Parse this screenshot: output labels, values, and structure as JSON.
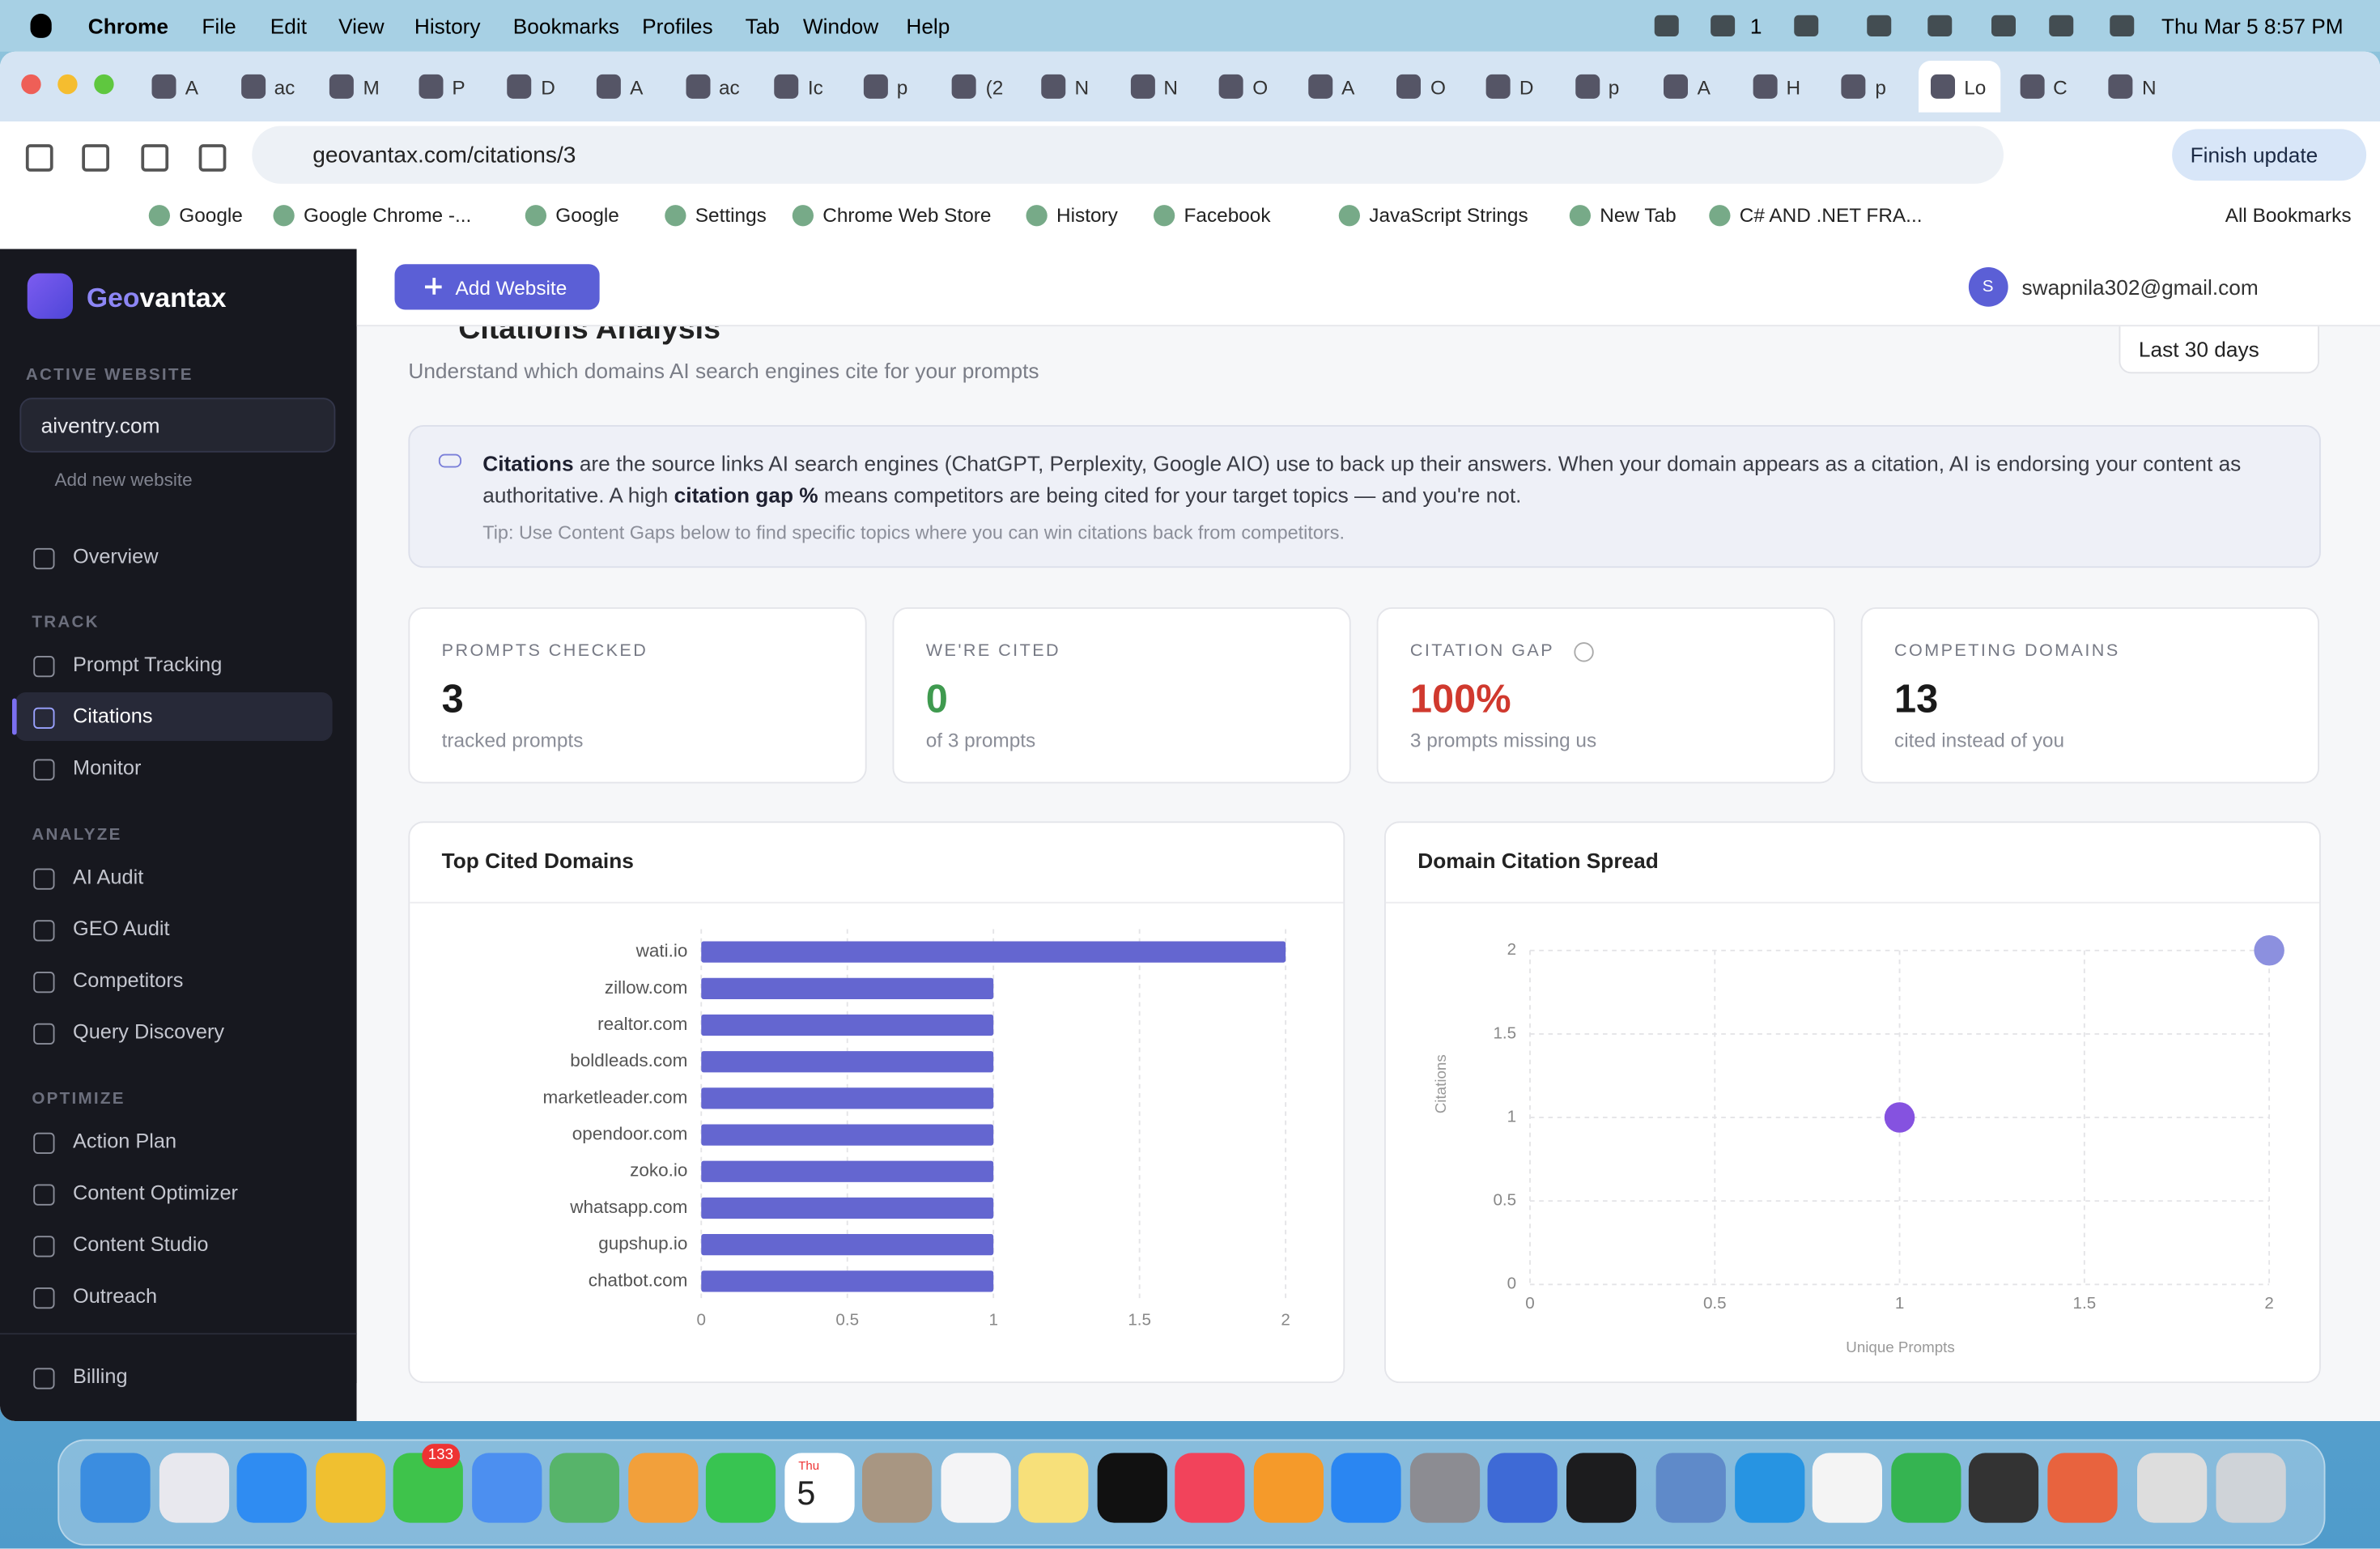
{
  "menubar": {
    "app": "Chrome",
    "menus": [
      "File",
      "Edit",
      "View",
      "History",
      "Bookmarks",
      "Profiles",
      "Tab",
      "Window",
      "Help"
    ],
    "badge": "1",
    "datetime": "Thu Mar 5  8:57 PM"
  },
  "browser": {
    "tabs": [
      "A",
      "ac",
      "M",
      "P",
      "D",
      "A",
      "ac",
      "Ic",
      "p",
      "(2",
      "N",
      "N",
      "O",
      "A",
      "O",
      "D",
      "p",
      "A",
      "H",
      "p",
      "Lo",
      "C",
      "N"
    ],
    "url": "geovantax.com/citations/3",
    "finish_update": "Finish update",
    "bookmarks": [
      "Google",
      "Google Chrome -...",
      "Google",
      "Settings",
      "Chrome Web Store",
      "History",
      "Facebook",
      "JavaScript Strings",
      "New Tab",
      "C# AND .NET FRA..."
    ],
    "all_bookmarks": "All Bookmarks"
  },
  "sidebar": {
    "brand_prefix": "Geo",
    "brand_suffix": "vantax",
    "active_website_label": "ACTIVE WEBSITE",
    "website": "aiventry.com",
    "add_new": "Add new website",
    "overview": "Overview",
    "sections": [
      {
        "title": "TRACK",
        "items": [
          "Prompt Tracking",
          "Citations",
          "Monitor"
        ]
      },
      {
        "title": "ANALYZE",
        "items": [
          "AI Audit",
          "GEO Audit",
          "Competitors",
          "Query Discovery"
        ]
      },
      {
        "title": "OPTIMIZE",
        "items": [
          "Action Plan",
          "Content Optimizer",
          "Content Studio",
          "Outreach"
        ]
      }
    ],
    "billing": "Billing"
  },
  "topbar": {
    "add_website": "Add Website",
    "avatar": "S",
    "email": "swapnila302@gmail.com"
  },
  "page": {
    "title": "Citations Analysis",
    "subtitle": "Understand which domains AI search engines cite for your prompts",
    "range": "Last 30 days",
    "info": {
      "term": "Citations",
      "text1": " are the source links AI search engines (ChatGPT, Perplexity, Google AIO) use to back up their answers. When your domain appears as a citation, AI is endorsing your content as authoritative. A high ",
      "term2": "citation gap %",
      "text2": " means competitors are being cited for your target topics — and you're not.",
      "tip": "Tip: Use Content Gaps below to find specific topics where you can win citations back from competitors."
    },
    "stats": [
      {
        "label": "PROMPTS CHECKED",
        "value": "3",
        "note": "tracked prompts",
        "color": "#1a1a1a"
      },
      {
        "label": "WE'RE CITED",
        "value": "0",
        "note": "of 3 prompts",
        "color": "#3f9a4f"
      },
      {
        "label": "CITATION GAP",
        "value": "100%",
        "note": "3 prompts missing us",
        "color": "#d0392e"
      },
      {
        "label": "COMPETING DOMAINS",
        "value": "13",
        "note": "cited instead of you",
        "color": "#1a1a1a"
      }
    ]
  },
  "chart_data": [
    {
      "type": "bar",
      "orientation": "horizontal",
      "title": "Top Cited Domains",
      "categories": [
        "wati.io",
        "zillow.com",
        "realtor.com",
        "boldleads.com",
        "marketleader.com",
        "opendoor.com",
        "zoko.io",
        "whatsapp.com",
        "gupshup.io",
        "chatbot.com"
      ],
      "values": [
        2,
        1,
        1,
        1,
        1,
        1,
        1,
        1,
        1,
        1
      ],
      "color": "#6466d0",
      "xlim": [
        0,
        2
      ],
      "xticks": [
        0,
        0.5,
        1,
        1.5,
        2
      ],
      "grid": true
    },
    {
      "type": "scatter",
      "title": "Domain Citation Spread",
      "x": [
        1,
        2
      ],
      "y": [
        1,
        2
      ],
      "colors": [
        "#8552e0",
        "#8c90df"
      ],
      "xlabel": "Unique Prompts",
      "ylabel": "Citations",
      "xlim": [
        0,
        2
      ],
      "ylim": [
        0,
        2
      ],
      "xticks": [
        0,
        0.5,
        1,
        1.5,
        2
      ],
      "yticks": [
        0,
        0.5,
        1,
        1.5,
        2
      ],
      "grid": true
    }
  ],
  "dock": {
    "messages_badge": "133",
    "calendar_day": "Thu",
    "calendar_date": "5"
  }
}
